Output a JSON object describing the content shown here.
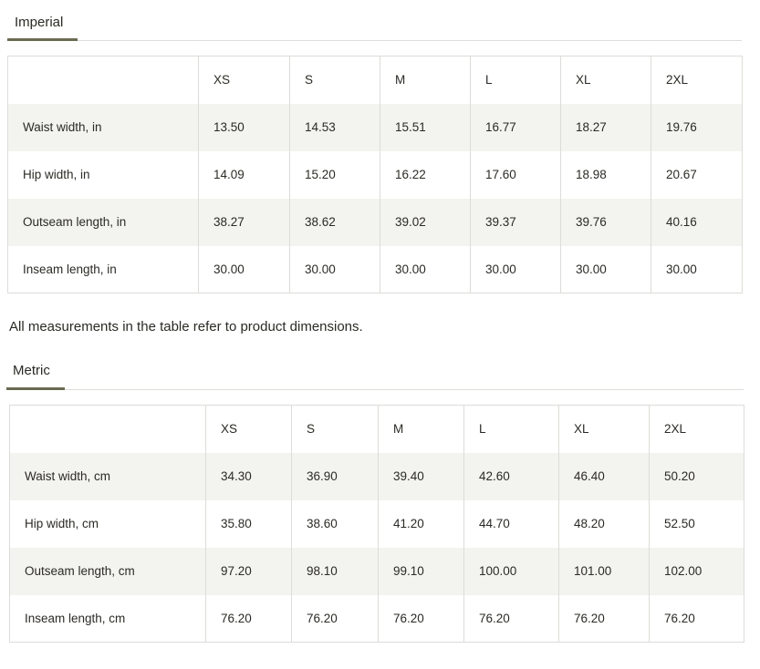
{
  "imperial": {
    "tab_label": "Imperial",
    "sizes": [
      "XS",
      "S",
      "M",
      "L",
      "XL",
      "2XL"
    ],
    "rows": [
      {
        "label": "Waist width, in",
        "values": [
          "13.50",
          "14.53",
          "15.51",
          "16.77",
          "18.27",
          "19.76"
        ]
      },
      {
        "label": "Hip width, in",
        "values": [
          "14.09",
          "15.20",
          "16.22",
          "17.60",
          "18.98",
          "20.67"
        ]
      },
      {
        "label": "Outseam length, in",
        "values": [
          "38.27",
          "38.62",
          "39.02",
          "39.37",
          "39.76",
          "40.16"
        ]
      },
      {
        "label": "Inseam length, in",
        "values": [
          "30.00",
          "30.00",
          "30.00",
          "30.00",
          "30.00",
          "30.00"
        ]
      }
    ]
  },
  "note": "All measurements in the table refer to product dimensions.",
  "metric": {
    "tab_label": "Metric",
    "sizes": [
      "XS",
      "S",
      "M",
      "L",
      "XL",
      "2XL"
    ],
    "rows": [
      {
        "label": "Waist width, cm",
        "values": [
          "34.30",
          "36.90",
          "39.40",
          "42.60",
          "46.40",
          "50.20"
        ]
      },
      {
        "label": "Hip width, cm",
        "values": [
          "35.80",
          "38.60",
          "41.20",
          "44.70",
          "48.20",
          "52.50"
        ]
      },
      {
        "label": "Outseam length, cm",
        "values": [
          "97.20",
          "98.10",
          "99.10",
          "100.00",
          "101.00",
          "102.00"
        ]
      },
      {
        "label": "Inseam length, cm",
        "values": [
          "76.20",
          "76.20",
          "76.20",
          "76.20",
          "76.20",
          "76.20"
        ]
      }
    ]
  },
  "colors": {
    "accent": "#6b6b52",
    "stripe": "#f3f3ef",
    "border": "#dcdcd8"
  }
}
